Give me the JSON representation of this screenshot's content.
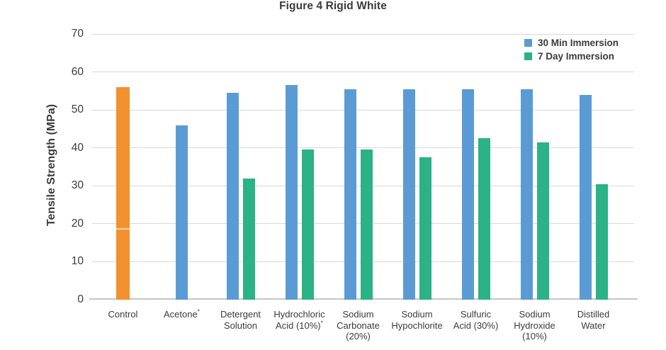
{
  "figure": {
    "title": "Figure 4 Rigid White",
    "y_axis_title": "Tensile Strength (MPa)"
  },
  "legend": {
    "position": "top-right",
    "items": [
      {
        "label": "30 Min Immersion",
        "color": "#5B9BD5"
      },
      {
        "label": "7 Day Immersion",
        "color": "#2BB287"
      }
    ]
  },
  "colors": {
    "background": "#FFFFFF",
    "text": "#3B3B3B",
    "gridline": "#D9D9D9",
    "axis_line": "#C6C6C6",
    "bar_blue": "#5B9BD5",
    "bar_green": "#2BB287",
    "bar_control_orange": "#F2912D"
  },
  "chart_data": {
    "type": "bar",
    "title": "Figure 4 Rigid White",
    "ylabel": "Tensile Strength (MPa)",
    "xlabel": "",
    "ylim": [
      0,
      70
    ],
    "yticks": [
      0,
      10,
      20,
      30,
      40,
      50,
      60,
      70
    ],
    "grid": "horizontal",
    "legend_position": "top-right",
    "categories": [
      "Control",
      "Acetone*",
      "Detergent Solution",
      "Hydrochloric Acid (10%)*",
      "Sodium Carbonate (20%)",
      "Sodium Hypochlorite",
      "Sulfuric Acid (30%)",
      "Sodium Hydroxide (10%)",
      "Distilled Water"
    ],
    "category_label_lines": [
      [
        "Control"
      ],
      [
        "Acetone*"
      ],
      [
        "Detergent",
        "Solution"
      ],
      [
        "Hydrochloric",
        "Acid (10%)*"
      ],
      [
        "Sodium",
        "Carbonate",
        "(20%)"
      ],
      [
        "Sodium",
        "Hypochlorite"
      ],
      [
        "Sulfuric",
        "Acid (30%)"
      ],
      [
        "Sodium",
        "Hydroxide",
        "(10%)"
      ],
      [
        "Distilled",
        "Water"
      ]
    ],
    "series": [
      {
        "name": "30 Min Immersion",
        "color": "#5B9BD5",
        "values": [
          56,
          46,
          54.5,
          56.5,
          55.5,
          55.5,
          55.5,
          55.5,
          54
        ]
      },
      {
        "name": "7 Day Immersion",
        "color": "#2BB287",
        "values": [
          null,
          null,
          32,
          39.5,
          39.5,
          37.5,
          42.5,
          41.5,
          30.5
        ]
      }
    ],
    "control_bar": {
      "category": "Control",
      "series": "30 Min Immersion",
      "color": "#F2912D",
      "stripe_overlap_mpa": 18.5
    }
  }
}
